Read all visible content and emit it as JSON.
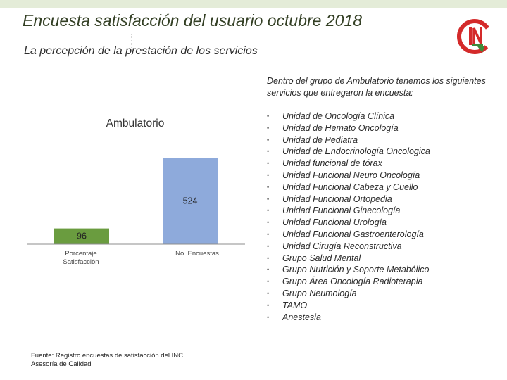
{
  "header": {
    "title": "Encuesta satisfacción del usuario octubre  2018",
    "subtitle": "La percepción de la prestación de los servicios"
  },
  "logo": {
    "icon": "inc-logo-icon",
    "color_red": "#d42a2a",
    "color_green": "#3e8a3a"
  },
  "intro_text": "Dentro del grupo de Ambulatorio tenemos los siguientes servicios que entregaron la encuesta:",
  "services": [
    "Unidad de Oncología Clínica",
    "Unidad de Hemato Oncología",
    "Unidad de Pediatra",
    "Unidad de Endocrinología Oncologica",
    "Unidad funcional de tórax",
    "Unidad Funcional Neuro Oncología",
    "Unidad Funcional Cabeza y Cuello",
    "Unidad Funcional Ortopedia",
    "Unidad Funcional Ginecología",
    "Unidad Funcional Urología",
    "Unidad Funcional Gastroenterología",
    "Unidad Cirugía Reconstructiva",
    "Grupo Salud Mental",
    "Grupo Nutrición y Soporte Metabólico",
    "Grupo Área Oncología Radioterapia",
    "Grupo Neumología",
    "TAMO",
    "Anestesia"
  ],
  "chart_data": {
    "type": "bar",
    "title": "Ambulatorio",
    "categories": [
      "Porcentaje Satisfacción",
      "No. Encuestas"
    ],
    "category_lines": [
      [
        "Porcentaje",
        "Satisfacción"
      ],
      [
        "No. Encuestas"
      ]
    ],
    "values": [
      96,
      524
    ],
    "data_labels": [
      "96",
      "524"
    ],
    "colors": [
      "#6a9c3f",
      "#8eaadb"
    ],
    "ylim": [
      0,
      600
    ],
    "grid": false,
    "legend": "none"
  },
  "source": {
    "line1": "Fuente: Registro encuestas de satisfacción del INC.",
    "line2": "Asesoría de Calidad"
  }
}
